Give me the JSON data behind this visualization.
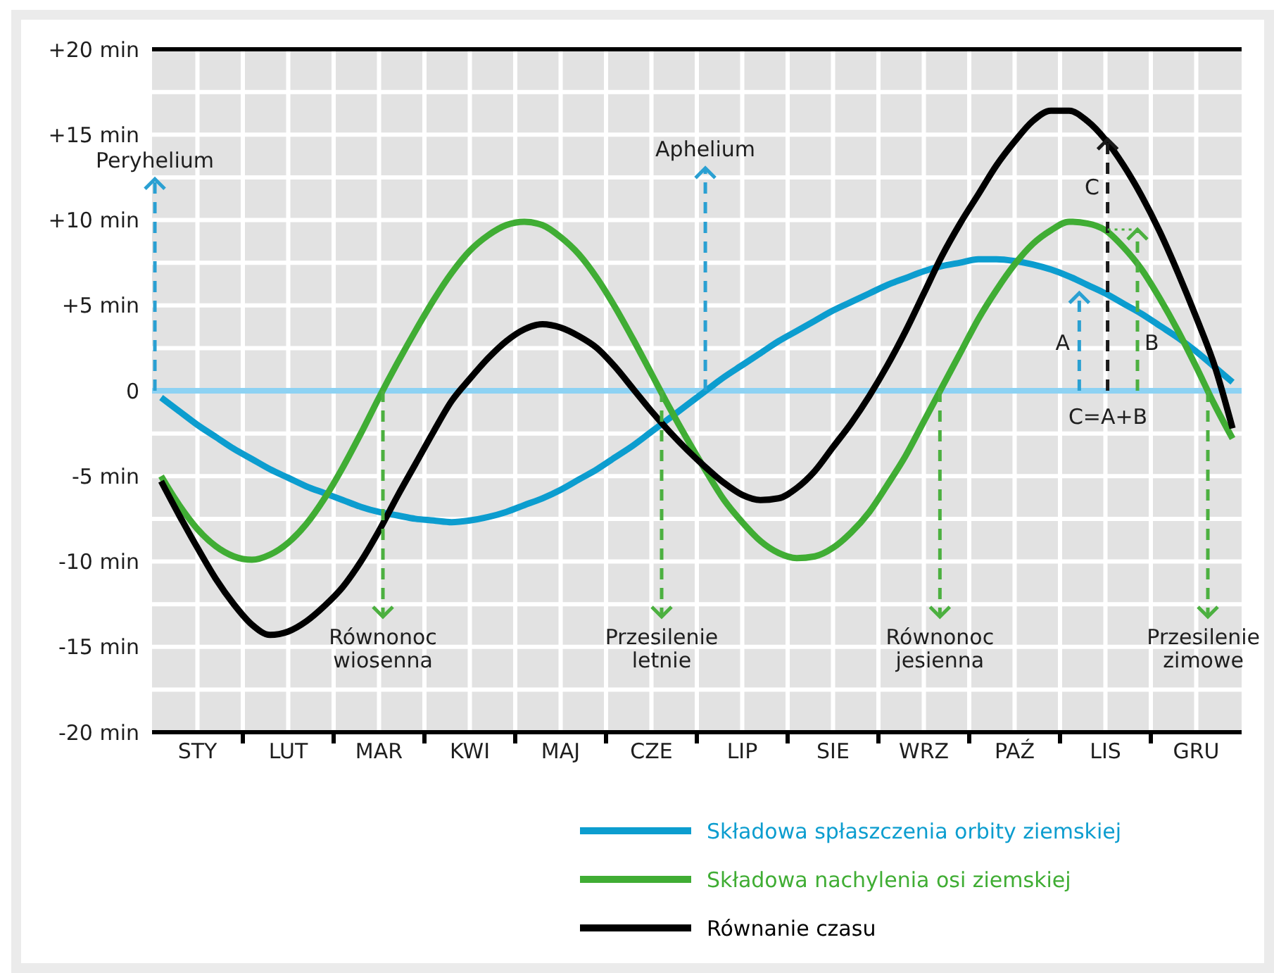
{
  "chart_data": {
    "type": "line",
    "categories": [
      null,
      null,
      "STY",
      null,
      null,
      null,
      null,
      "LUT",
      null,
      null,
      null,
      null,
      "MAR",
      null,
      null,
      null,
      null,
      "KWI",
      null,
      null,
      null,
      null,
      "MAJ",
      null,
      null,
      null,
      null,
      "CZE",
      null,
      null,
      null,
      null,
      "LIP",
      null,
      null,
      null,
      null,
      "SIE",
      null,
      null,
      null,
      null,
      "WRZ",
      null,
      null,
      null,
      null,
      "PAŹ",
      null,
      null,
      null,
      null,
      "LIS",
      null,
      null,
      null,
      null,
      "GRU",
      null,
      null
    ],
    "ylim": [
      -20,
      20
    ],
    "yticks": [
      {
        "value": -20,
        "label": "-20 min"
      },
      {
        "value": -17.5,
        "label": null
      },
      {
        "value": -15,
        "label": "-15 min"
      },
      {
        "value": -12.5,
        "label": null
      },
      {
        "value": -10,
        "label": "-10 min"
      },
      {
        "value": -7.5,
        "label": null
      },
      {
        "value": -5,
        "label": "-5 min"
      },
      {
        "value": -2.5,
        "label": null
      },
      0,
      {
        "value": 2.5,
        "label": null
      },
      {
        "value": 5,
        "label": "+5 min"
      },
      {
        "value": 7.5,
        "label": null
      },
      {
        "value": 10,
        "label": "+10 min"
      },
      {
        "value": 12.5,
        "label": null
      },
      {
        "value": 15,
        "label": "+15 min"
      },
      {
        "value": 17.5,
        "label": null
      },
      {
        "value": 20,
        "label": "+20 min"
      }
    ],
    "grid": true,
    "legend": "bottom right",
    "series": [
      {
        "name": "Składowa spłaszczenia orbity ziemskiej",
        "color": "#0c9dcf",
        "values": [
          -0.4,
          -1.2,
          -2.0,
          -2.7,
          -3.4,
          -4.0,
          -4.6,
          -5.1,
          -5.6,
          -6.0,
          -6.4,
          -6.8,
          -7.1,
          -7.3,
          -7.5,
          -7.6,
          -7.7,
          -7.6,
          -7.4,
          -7.1,
          -6.7,
          -6.3,
          -5.8,
          -5.2,
          -4.6,
          -3.9,
          -3.2,
          -2.4,
          -1.6,
          -0.8,
          0.0,
          0.8,
          1.5,
          2.2,
          2.9,
          3.5,
          4.1,
          4.7,
          5.2,
          5.7,
          6.2,
          6.6,
          7.0,
          7.3,
          7.5,
          7.7,
          7.7,
          7.6,
          7.4,
          7.1,
          6.7,
          6.2,
          5.7,
          5.1,
          4.5,
          3.8,
          3.1,
          2.3,
          1.4,
          0.5
        ]
      },
      {
        "name": "Składowa nachylenia osi ziemskiej",
        "color": "#40ad34",
        "values": [
          -5.0,
          -6.7,
          -8.1,
          -9.1,
          -9.7,
          -9.9,
          -9.6,
          -8.9,
          -7.8,
          -6.3,
          -4.5,
          -2.5,
          -0.4,
          1.6,
          3.5,
          5.3,
          6.9,
          8.2,
          9.1,
          9.7,
          9.9,
          9.7,
          9.0,
          8.0,
          6.6,
          4.9,
          3.0,
          1.0,
          -1.0,
          -2.9,
          -4.7,
          -6.4,
          -7.7,
          -8.8,
          -9.5,
          -9.8,
          -9.7,
          -9.2,
          -8.3,
          -7.1,
          -5.5,
          -3.8,
          -1.8,
          0.2,
          2.2,
          4.2,
          5.9,
          7.4,
          8.6,
          9.4,
          9.9,
          9.8,
          9.4,
          8.4,
          7.1,
          5.4,
          3.5,
          1.4,
          -0.8,
          -2.8
        ]
      },
      {
        "name": "Równanie czasu",
        "color": "#000000",
        "values": [
          -5.3,
          -7.3,
          -9.2,
          -11.0,
          -12.5,
          -13.7,
          -14.3,
          -14.1,
          -13.5,
          -12.6,
          -11.5,
          -10.0,
          -8.2,
          -6.2,
          -4.3,
          -2.4,
          -0.6,
          0.7,
          1.9,
          2.9,
          3.6,
          3.9,
          3.7,
          3.2,
          2.5,
          1.4,
          0.1,
          -1.2,
          -2.4,
          -3.5,
          -4.5,
          -5.4,
          -6.1,
          -6.4,
          -6.3,
          -5.7,
          -4.7,
          -3.3,
          -1.9,
          -0.3,
          1.5,
          3.5,
          5.7,
          7.9,
          9.8,
          11.5,
          13.2,
          14.6,
          15.8,
          16.4,
          16.4,
          15.8,
          14.7,
          13.2,
          11.4,
          9.3,
          6.9,
          4.3,
          1.5,
          -2.2
        ]
      }
    ],
    "ref_lines": [
      {
        "axis": "y",
        "value": 0,
        "color": "#8dd2f3"
      }
    ],
    "annotations": [
      {
        "text": "Peryhelium",
        "y": 0
      },
      {
        "text": "Aphelium",
        "y": 0
      },
      {
        "text": "Równonoc\nwiosenna",
        "y": 0
      },
      {
        "text": "Przesilenie\nletnie",
        "y": 0
      },
      {
        "text": "Równonoc\njesienna",
        "y": 0
      },
      {
        "text": "Przesilenie\nzimowe",
        "y": 0
      },
      "A",
      "B",
      "C",
      {
        "text": "C=A+B",
        "y": 0
      }
    ]
  }
}
